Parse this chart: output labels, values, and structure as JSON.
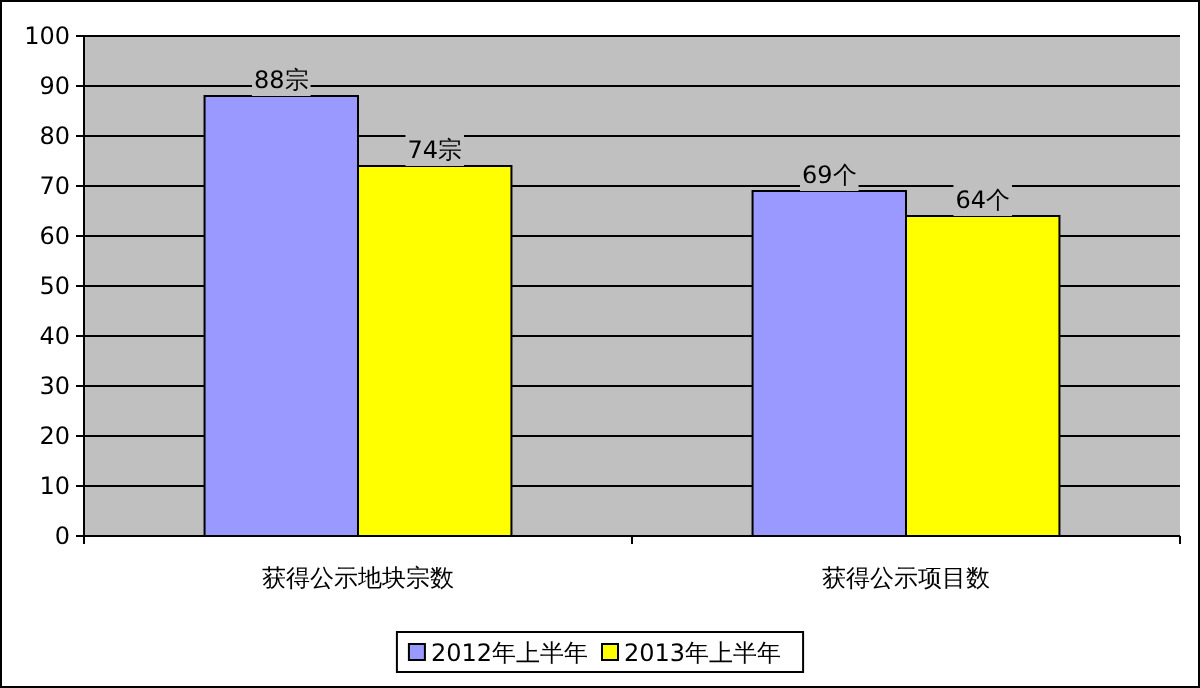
{
  "chart_data": {
    "type": "bar",
    "categories": [
      "获得公示地块宗数",
      "获得公示项目数"
    ],
    "series": [
      {
        "name": "2012年上半年",
        "color": "#9999ff",
        "values": [
          88,
          69
        ],
        "value_labels": [
          "88宗",
          "69个"
        ]
      },
      {
        "name": "2013年上半年",
        "color": "#ffff00",
        "values": [
          74,
          64
        ],
        "value_labels": [
          "74宗",
          "64个"
        ]
      }
    ],
    "ylim": [
      0,
      100
    ],
    "yticks": [
      0,
      10,
      20,
      30,
      40,
      50,
      60,
      70,
      80,
      90,
      100
    ],
    "grid": "y",
    "legend": "bottom"
  }
}
